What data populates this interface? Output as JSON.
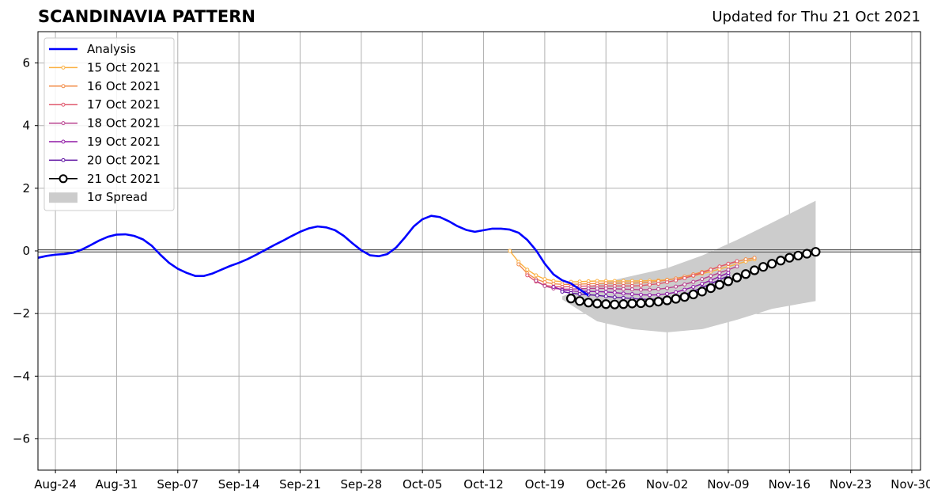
{
  "header": {
    "title": "SCANDINAVIA PATTERN",
    "updated": "Updated for Thu 21 Oct 2021"
  },
  "chart_data": {
    "type": "line",
    "title": "SCANDINAVIA PATTERN",
    "subtitle": "Updated for Thu 21 Oct 2021",
    "xlabel": "",
    "ylabel": "",
    "ylim": [
      -7,
      7
    ],
    "xlim": [
      "2021-08-22",
      "2021-12-01"
    ],
    "yticks": [
      -6,
      -4,
      -2,
      0,
      2,
      4,
      6
    ],
    "ytick_labels": [
      "−6",
      "−4",
      "−2",
      "0",
      "2",
      "4",
      "6"
    ],
    "xticks": [
      "2021-08-24",
      "2021-08-31",
      "2021-09-07",
      "2021-09-14",
      "2021-09-21",
      "2021-09-28",
      "2021-10-05",
      "2021-10-12",
      "2021-10-19",
      "2021-10-26",
      "2021-11-02",
      "2021-11-09",
      "2021-11-16",
      "2021-11-23",
      "2021-11-30"
    ],
    "xtick_labels": [
      "Aug-24",
      "Aug-31",
      "Sep-07",
      "Sep-14",
      "Sep-21",
      "Sep-28",
      "Oct-05",
      "Oct-12",
      "Oct-19",
      "Oct-26",
      "Nov-02",
      "Nov-09",
      "Nov-16",
      "Nov-23",
      "Nov-30"
    ],
    "grid": true,
    "legend_position": "top-left",
    "legend": [
      "Analysis",
      "15 Oct 2021",
      "16 Oct 2021",
      "17 Oct 2021",
      "18 Oct 2021",
      "19 Oct 2021",
      "20 Oct 2021",
      "21 Oct 2021",
      "1σ Spread"
    ],
    "analysis": {
      "name": "Analysis",
      "color": "#0000ff",
      "start": "2021-08-22",
      "values": [
        -0.22,
        -0.16,
        -0.12,
        -0.1,
        -0.06,
        0.04,
        0.18,
        0.33,
        0.45,
        0.52,
        0.53,
        0.48,
        0.37,
        0.17,
        -0.12,
        -0.38,
        -0.57,
        -0.7,
        -0.8,
        -0.8,
        -0.72,
        -0.6,
        -0.48,
        -0.38,
        -0.26,
        -0.12,
        0.03,
        0.18,
        0.32,
        0.47,
        0.61,
        0.72,
        0.78,
        0.75,
        0.66,
        0.48,
        0.24,
        0.02,
        -0.14,
        -0.17,
        -0.1,
        0.11,
        0.43,
        0.78,
        1.01,
        1.12,
        1.08,
        0.95,
        0.79,
        0.67,
        0.61,
        0.66,
        0.71,
        0.71,
        0.68,
        0.58,
        0.35,
        0.02,
        -0.41,
        -0.75,
        -0.94,
        -1.04,
        -1.23,
        -1.42
      ]
    },
    "forecasts": [
      {
        "name": "15 Oct 2021",
        "color": "#fbb040",
        "start": "2021-10-15",
        "values": [
          0.0,
          -0.35,
          -0.6,
          -0.78,
          -0.9,
          -0.96,
          -0.98,
          -0.99,
          -0.98,
          -0.97,
          -0.96,
          -0.96,
          -0.96,
          -0.96,
          -0.96,
          -0.96,
          -0.95,
          -0.94,
          -0.92,
          -0.89,
          -0.85,
          -0.8,
          -0.73,
          -0.66,
          -0.58,
          -0.5,
          -0.42,
          -0.34,
          -0.27
        ]
      },
      {
        "name": "16 Oct 2021",
        "color": "#f28c48",
        "start": "2021-10-16",
        "values": [
          -0.43,
          -0.72,
          -0.9,
          -1.0,
          -1.05,
          -1.07,
          -1.07,
          -1.06,
          -1.05,
          -1.04,
          -1.03,
          -1.03,
          -1.03,
          -1.03,
          -1.02,
          -1.0,
          -0.97,
          -0.93,
          -0.88,
          -0.82,
          -0.75,
          -0.67,
          -0.59,
          -0.5,
          -0.42,
          -0.34,
          -0.27,
          -0.22
        ]
      },
      {
        "name": "17 Oct 2021",
        "color": "#e0586d",
        "start": "2021-10-17",
        "values": [
          -0.78,
          -0.98,
          -1.1,
          -1.14,
          -1.15,
          -1.14,
          -1.13,
          -1.12,
          -1.12,
          -1.12,
          -1.12,
          -1.12,
          -1.12,
          -1.11,
          -1.08,
          -1.05,
          -1.0,
          -0.94,
          -0.87,
          -0.79,
          -0.7,
          -0.6,
          -0.5,
          -0.41,
          -0.33
        ]
      },
      {
        "name": "18 Oct 2021",
        "color": "#b8408e",
        "start": "2021-10-18",
        "values": [
          -0.95,
          -1.12,
          -1.2,
          -1.22,
          -1.22,
          -1.21,
          -1.2,
          -1.2,
          -1.2,
          -1.21,
          -1.22,
          -1.23,
          -1.24,
          -1.24,
          -1.22,
          -1.19,
          -1.14,
          -1.07,
          -0.99,
          -0.9,
          -0.8,
          -0.7,
          -0.6,
          -0.5
        ]
      },
      {
        "name": "19 Oct 2021",
        "color": "#8f19a6",
        "start": "2021-10-20",
        "values": [
          -1.15,
          -1.25,
          -1.28,
          -1.29,
          -1.29,
          -1.3,
          -1.31,
          -1.33,
          -1.36,
          -1.38,
          -1.4,
          -1.41,
          -1.4,
          -1.37,
          -1.32,
          -1.24,
          -1.15,
          -1.05,
          -0.94,
          -0.82,
          -0.7
        ]
      },
      {
        "name": "20 Oct 2021",
        "color": "#5c0fa0",
        "start": "2021-10-21",
        "values": [
          -1.3,
          -1.35,
          -1.38,
          -1.4,
          -1.42,
          -1.45,
          -1.48,
          -1.5,
          -1.52,
          -1.54,
          -1.55,
          -1.54,
          -1.52,
          -1.47,
          -1.39,
          -1.29,
          -1.17,
          -1.05,
          -0.92,
          -0.8
        ]
      },
      {
        "name": "21 Oct 2021",
        "color": "#000000",
        "start": "2021-10-22",
        "values": [
          -1.52,
          -1.6,
          -1.65,
          -1.68,
          -1.7,
          -1.71,
          -1.7,
          -1.68,
          -1.67,
          -1.65,
          -1.62,
          -1.58,
          -1.53,
          -1.47,
          -1.39,
          -1.3,
          -1.19,
          -1.08,
          -0.97,
          -0.85,
          -0.74,
          -0.62,
          -0.51,
          -0.41,
          -0.31,
          -0.22,
          -0.15,
          -0.09,
          -0.03
        ]
      }
    ],
    "spread": {
      "name": "1σ Spread",
      "color": "#cccccc",
      "x": [
        "2021-10-21",
        "2021-10-25",
        "2021-10-29",
        "2021-11-02",
        "2021-11-06",
        "2021-11-10",
        "2021-11-14",
        "2021-11-19"
      ],
      "upper": [
        -1.45,
        -1.05,
        -0.8,
        -0.55,
        -0.15,
        0.35,
        0.9,
        1.6
      ],
      "lower": [
        -1.55,
        -2.25,
        -2.5,
        -2.6,
        -2.5,
        -2.2,
        -1.85,
        -1.6
      ]
    }
  }
}
